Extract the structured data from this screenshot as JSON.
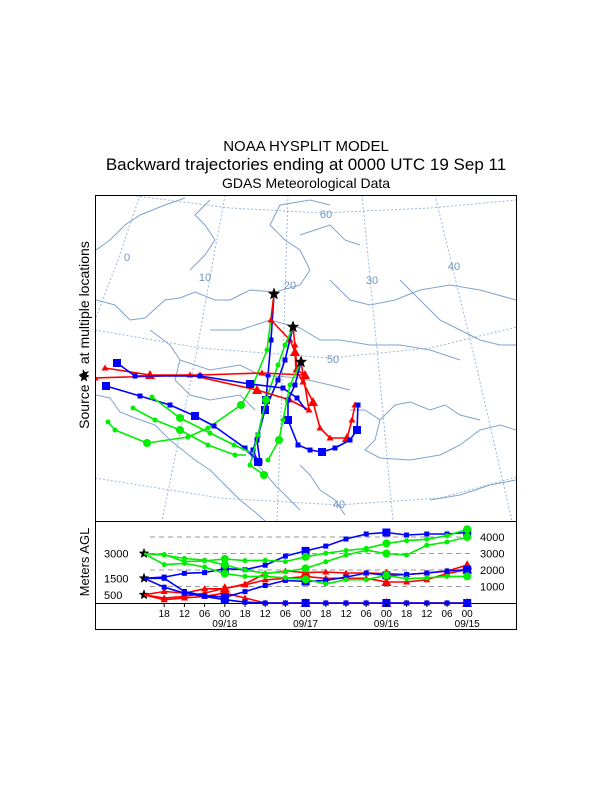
{
  "title": {
    "line1": "NOAA HYSPLIT MODEL",
    "line2": "Backward trajectories ending at 0000 UTC 19 Sep 11",
    "line3": "GDAS Meteorological Data"
  },
  "side_label": "Source ★ at multiple locations",
  "map": {
    "lat_labels": [
      "60",
      "50",
      "40"
    ],
    "lon_labels": [
      "0",
      "10",
      "20",
      "30",
      "40"
    ],
    "colors": {
      "land": "#7fa3d0",
      "grid": "#9bb7dd",
      "label": "#6f93c4"
    }
  },
  "chart_data": {
    "type": "line",
    "title": "Backward trajectories ending at 0000 UTC 19 Sep 11",
    "ylabel": "Meters AGL",
    "ylim": [
      0,
      4500
    ],
    "right_ticks": [
      "4000",
      "3000",
      "2000",
      "1000"
    ],
    "source_heights": [
      "3000",
      "1500",
      "500"
    ],
    "x_ticks": [
      "18",
      "12",
      "06",
      "00",
      "18",
      "12",
      "06",
      "00",
      "18",
      "12",
      "06",
      "00",
      "18",
      "12",
      "06",
      "00"
    ],
    "date_labels": [
      "09/18",
      "09/17",
      "09/16",
      "09/15"
    ],
    "hours_back": [
      0,
      -6,
      -12,
      -18,
      -24,
      -30,
      -36,
      -42,
      -48,
      -54,
      -60,
      -66,
      -72,
      -78,
      -84,
      -90,
      -96
    ],
    "series": [
      {
        "name": "red-500-a",
        "color": "#ff0000",
        "marker": "triangle",
        "values": [
          500,
          700,
          600,
          860,
          860,
          1160,
          1780,
          1940,
          1840,
          1880,
          1820,
          1820,
          1780,
          1730,
          1820,
          1940,
          2290
        ]
      },
      {
        "name": "red-500-b",
        "color": "#ff0000",
        "marker": "triangle",
        "values": [
          500,
          200,
          300,
          400,
          600,
          300,
          0,
          0,
          0,
          0,
          0,
          0,
          0,
          0,
          0,
          0,
          0
        ]
      },
      {
        "name": "red-500-c",
        "color": "#ff0000",
        "marker": "triangle",
        "values": [
          500,
          300,
          400,
          600,
          900,
          1100,
          1400,
          1500,
          1600,
          1500,
          1500,
          1500,
          1270,
          1270,
          1410,
          1780,
          2020
        ]
      },
      {
        "name": "blue-1500-a",
        "color": "#0000ff",
        "marker": "square",
        "values": [
          1500,
          1570,
          1800,
          1840,
          2080,
          2020,
          2290,
          2840,
          3160,
          3450,
          3880,
          4180,
          4270,
          4120,
          4180,
          4180,
          4270
        ]
      },
      {
        "name": "blue-1500-b",
        "color": "#0000ff",
        "marker": "square",
        "values": [
          1500,
          960,
          600,
          400,
          200,
          50,
          0,
          0,
          0,
          0,
          0,
          0,
          0,
          0,
          0,
          0,
          0
        ]
      },
      {
        "name": "blue-1500-c",
        "color": "#0000ff",
        "marker": "square",
        "values": [
          1500,
          1500,
          700,
          450,
          350,
          690,
          1060,
          1370,
          1300,
          1370,
          1570,
          1820,
          1670,
          1730,
          1820,
          1940,
          2020
        ]
      },
      {
        "name": "green-3000-a",
        "color": "#00ee00",
        "marker": "circle",
        "values": [
          3000,
          2330,
          2400,
          2180,
          1780,
          1610,
          1610,
          1530,
          1430,
          1160,
          1410,
          1410,
          1670,
          1470,
          1530,
          1610,
          1610
        ]
      },
      {
        "name": "green-3000-b",
        "color": "#00ee00",
        "marker": "circle",
        "values": [
          3000,
          2940,
          2510,
          2550,
          2670,
          2570,
          2590,
          2510,
          2800,
          3020,
          3180,
          3310,
          3610,
          3780,
          3860,
          4080,
          4470
        ]
      },
      {
        "name": "green-3000-c",
        "color": "#00ee00",
        "marker": "circle",
        "values": [
          3000,
          2900,
          2700,
          2600,
          2300,
          2000,
          1800,
          1900,
          2100,
          2500,
          2900,
          3200,
          3000,
          2900,
          3500,
          3700,
          4000
        ]
      }
    ]
  }
}
